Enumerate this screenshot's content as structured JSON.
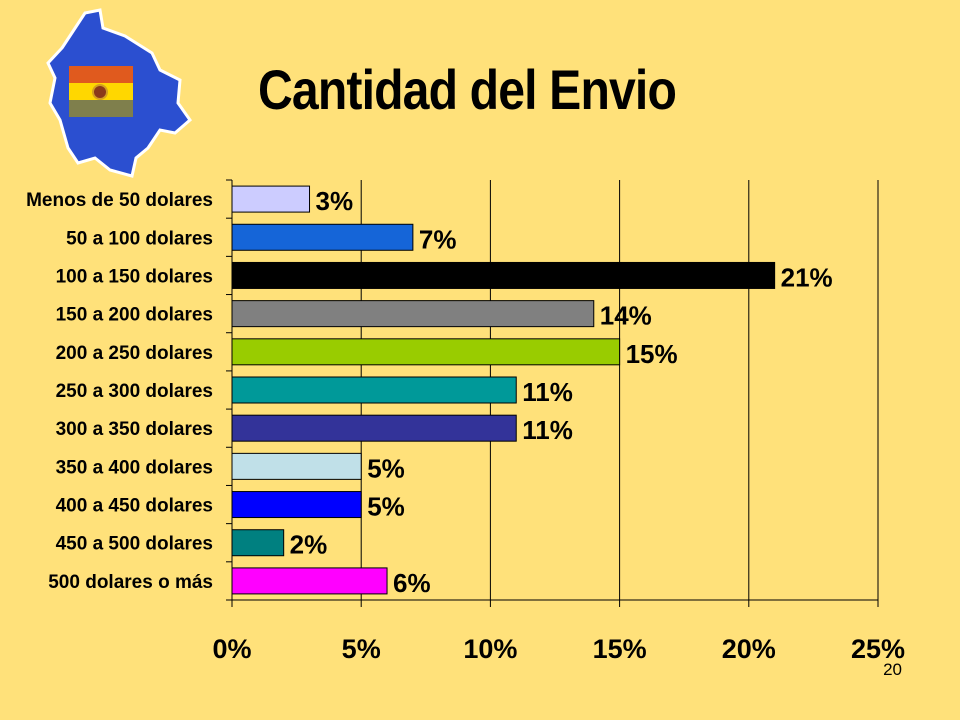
{
  "slide": {
    "title": "Cantidad del Envio",
    "page_number": "20"
  },
  "flag_colors": [
    "#E05A1E",
    "#FFD700",
    "#7F7F4C"
  ],
  "map_color": "#2B4FD0",
  "chart_data": {
    "type": "bar",
    "orientation": "horizontal",
    "title": "",
    "xlabel": "",
    "ylabel": "",
    "categories": [
      "Menos de 50 dolares",
      "50 a 100 dolares",
      "100 a 150 dolares",
      "150 a 200 dolares",
      "200 a 250 dolares",
      "250 a 300 dolares",
      "300 a 350 dolares",
      "350 a 400 dolares",
      "400 a 450 dolares",
      "450 a 500 dolares",
      "500 dolares o más"
    ],
    "values": [
      3,
      7,
      21,
      14,
      15,
      11,
      11,
      5,
      5,
      2,
      6
    ],
    "value_labels": [
      "3%",
      "7%",
      "21%",
      "14%",
      "15%",
      "11%",
      "11%",
      "5%",
      "5%",
      "2%",
      "6%"
    ],
    "colors": [
      "#CCCCFF",
      "#1565D8",
      "#000000",
      "#808080",
      "#99CC00",
      "#009999",
      "#333399",
      "#C0E0E8",
      "#0000FF",
      "#008080",
      "#FF00FF"
    ],
    "xlim": [
      0,
      25
    ],
    "xticks": [
      0,
      5,
      10,
      15,
      20,
      25
    ],
    "xtick_labels": [
      "0%",
      "5%",
      "10%",
      "15%",
      "20%",
      "25%"
    ],
    "grid": true,
    "legend": "none"
  }
}
